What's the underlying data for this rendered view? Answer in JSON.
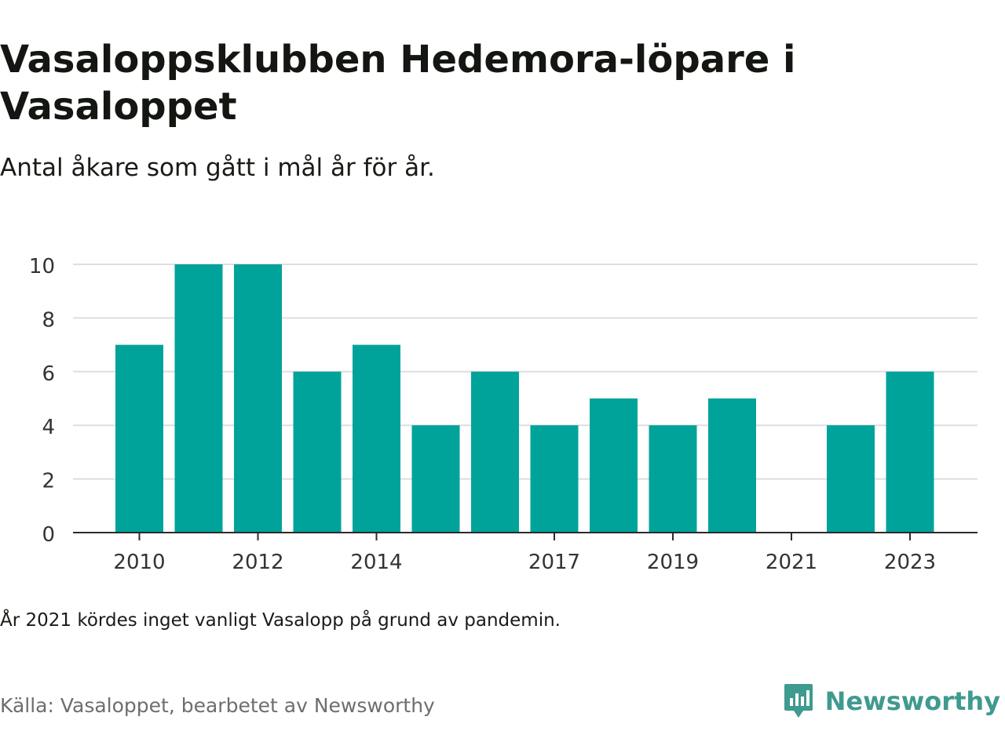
{
  "header": {
    "title": "Vasaloppsklubben Hedemora-löpare i Vasaloppet",
    "subtitle": "Antal åkare som gått i mål år för år."
  },
  "footer": {
    "note": "År 2021 kördes inget vanligt Vasalopp på grund av pandemin.",
    "source": "Källa: Vasaloppet, bearbetet av Newsworthy",
    "brand": "Newsworthy",
    "brand_icon": "newsworthy-logo-icon"
  },
  "colors": {
    "bar": "#00a39a",
    "grid": "#dedede",
    "axis": "#2b2b2b",
    "brand": "#3f9a8f"
  },
  "chart_data": {
    "type": "bar",
    "categories": [
      "2010",
      "2011",
      "2012",
      "2013",
      "2014",
      "2015",
      "2016",
      "2017",
      "2018",
      "2019",
      "2020",
      "2021",
      "2022",
      "2023"
    ],
    "values": [
      7,
      10,
      10,
      6,
      7,
      4,
      6,
      4,
      5,
      4,
      5,
      0,
      4,
      6
    ],
    "x_tick_labels": [
      "2010",
      "2012",
      "2014",
      "2017",
      "2019",
      "2021",
      "2023"
    ],
    "y_ticks": [
      0,
      2,
      4,
      6,
      8,
      10
    ],
    "ylim": [
      0,
      10
    ],
    "grid": true,
    "legend": "none",
    "xlabel": "",
    "ylabel": ""
  }
}
